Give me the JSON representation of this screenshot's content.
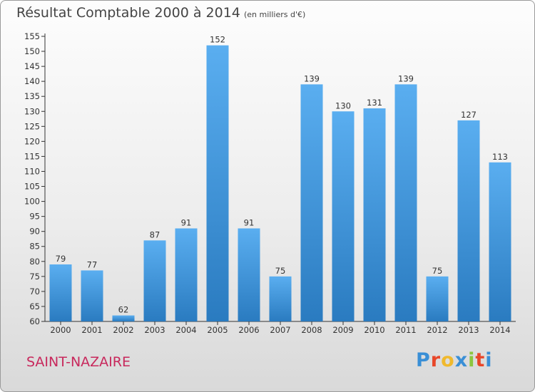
{
  "title": "Résultat Comptable 2000 à 2014",
  "subtitle": "(en milliers d'€)",
  "commune": "SAINT-NAZAIRE",
  "brand": {
    "letters": [
      "P",
      "r",
      "o",
      "x",
      "i",
      "t",
      "i"
    ],
    "colors": [
      "#3a8fd6",
      "#e8472a",
      "#f0b92d",
      "#3a8fd6",
      "#8cc63f",
      "#e8472a",
      "#3a8fd6"
    ]
  },
  "colors": {
    "bar_light": "#5aaef0",
    "bar_dark": "#2a7bc0",
    "commune": "#c8285c"
  },
  "chart_data": {
    "type": "bar",
    "categories": [
      "2000",
      "2001",
      "2002",
      "2003",
      "2004",
      "2005",
      "2006",
      "2007",
      "2008",
      "2009",
      "2010",
      "2011",
      "2012",
      "2013",
      "2014"
    ],
    "values": [
      79,
      77,
      62,
      87,
      91,
      152,
      91,
      75,
      139,
      130,
      131,
      139,
      75,
      127,
      113
    ],
    "ylim": [
      60,
      155
    ],
    "yticks": [
      60,
      65,
      70,
      75,
      80,
      85,
      90,
      95,
      100,
      105,
      110,
      115,
      120,
      125,
      130,
      135,
      140,
      145,
      150,
      155
    ],
    "grid": false,
    "legend": "none"
  }
}
